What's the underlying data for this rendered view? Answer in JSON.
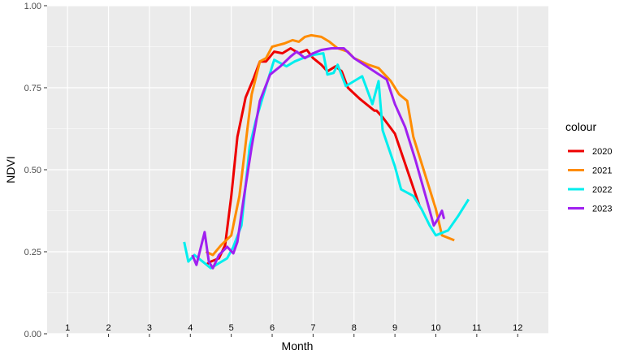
{
  "chart_data": {
    "type": "line",
    "title": "",
    "xlabel": "Month",
    "ylabel": "NDVI",
    "xlim": [
      0.5,
      12.75
    ],
    "ylim": [
      0,
      1
    ],
    "yticks": [
      0,
      0.25,
      0.5,
      0.75,
      1
    ],
    "ytick_labels": [
      "0.00",
      "0.25",
      "0.50",
      "0.75",
      "1.00"
    ],
    "xtick_positions": [
      0,
      1,
      2,
      3,
      4,
      5,
      6,
      7,
      8,
      9,
      10,
      11,
      12
    ],
    "month_labels": [
      {
        "text": "1",
        "x": 1
      },
      {
        "text": "2",
        "x": 2
      },
      {
        "text": "3",
        "x": 3
      },
      {
        "text": "4",
        "x": 4
      },
      {
        "text": "5",
        "x": 5
      },
      {
        "text": "6",
        "x": 6
      },
      {
        "text": "7",
        "x": 7
      },
      {
        "text": "8",
        "x": 8
      },
      {
        "text": "9",
        "x": 9
      },
      {
        "text": "10",
        "x": 10
      },
      {
        "text": "11",
        "x": 11
      },
      {
        "text": "12",
        "x": 12
      }
    ],
    "grid": true,
    "legend": {
      "title": "colour",
      "placement": "right"
    },
    "series": [
      {
        "name": "2020",
        "color": "#EE0000",
        "points": [
          [
            4.38,
            0.21
          ],
          [
            4.5,
            0.22
          ],
          [
            4.7,
            0.23
          ],
          [
            4.85,
            0.27
          ],
          [
            5.0,
            0.42
          ],
          [
            5.15,
            0.6
          ],
          [
            5.35,
            0.72
          ],
          [
            5.55,
            0.78
          ],
          [
            5.7,
            0.83
          ],
          [
            5.85,
            0.83
          ],
          [
            6.05,
            0.86
          ],
          [
            6.25,
            0.855
          ],
          [
            6.45,
            0.87
          ],
          [
            6.65,
            0.855
          ],
          [
            6.85,
            0.865
          ],
          [
            7.0,
            0.84
          ],
          [
            7.2,
            0.82
          ],
          [
            7.35,
            0.8
          ],
          [
            7.55,
            0.815
          ],
          [
            7.7,
            0.8
          ],
          [
            7.85,
            0.75
          ],
          [
            8.15,
            0.715
          ],
          [
            8.5,
            0.68
          ],
          [
            8.55,
            0.68
          ],
          [
            8.7,
            0.66
          ],
          [
            9.0,
            0.61
          ],
          [
            9.3,
            0.5
          ],
          [
            9.6,
            0.39
          ]
        ]
      },
      {
        "name": "2021",
        "color": "#FF8C00",
        "points": [
          [
            4.38,
            0.25
          ],
          [
            4.55,
            0.24
          ],
          [
            4.75,
            0.27
          ],
          [
            5.0,
            0.3
          ],
          [
            5.2,
            0.42
          ],
          [
            5.4,
            0.63
          ],
          [
            5.5,
            0.73
          ],
          [
            5.7,
            0.83
          ],
          [
            5.85,
            0.84
          ],
          [
            6.0,
            0.875
          ],
          [
            6.3,
            0.885
          ],
          [
            6.5,
            0.895
          ],
          [
            6.65,
            0.89
          ],
          [
            6.8,
            0.905
          ],
          [
            6.95,
            0.91
          ],
          [
            7.2,
            0.905
          ],
          [
            7.4,
            0.89
          ],
          [
            7.6,
            0.87
          ],
          [
            7.85,
            0.86
          ],
          [
            8.0,
            0.84
          ],
          [
            8.35,
            0.82
          ],
          [
            8.6,
            0.81
          ],
          [
            8.75,
            0.79
          ],
          [
            8.9,
            0.77
          ],
          [
            9.1,
            0.73
          ],
          [
            9.3,
            0.71
          ],
          [
            9.45,
            0.6
          ],
          [
            9.7,
            0.5
          ],
          [
            10.0,
            0.38
          ],
          [
            10.15,
            0.3
          ],
          [
            10.45,
            0.285
          ]
        ]
      },
      {
        "name": "2022",
        "color": "#00EEEE",
        "points": [
          [
            3.85,
            0.28
          ],
          [
            3.95,
            0.22
          ],
          [
            4.1,
            0.24
          ],
          [
            4.3,
            0.22
          ],
          [
            4.5,
            0.2
          ],
          [
            4.7,
            0.215
          ],
          [
            4.9,
            0.23
          ],
          [
            5.05,
            0.265
          ],
          [
            5.25,
            0.33
          ],
          [
            5.45,
            0.57
          ],
          [
            5.6,
            0.65
          ],
          [
            5.85,
            0.755
          ],
          [
            6.05,
            0.835
          ],
          [
            6.35,
            0.815
          ],
          [
            6.55,
            0.83
          ],
          [
            6.75,
            0.84
          ],
          [
            7.0,
            0.85
          ],
          [
            7.25,
            0.855
          ],
          [
            7.35,
            0.79
          ],
          [
            7.5,
            0.795
          ],
          [
            7.6,
            0.82
          ],
          [
            7.8,
            0.755
          ],
          [
            8.2,
            0.785
          ],
          [
            8.45,
            0.7
          ],
          [
            8.6,
            0.77
          ],
          [
            8.7,
            0.62
          ],
          [
            9.0,
            0.51
          ],
          [
            9.15,
            0.44
          ],
          [
            9.45,
            0.42
          ],
          [
            9.65,
            0.38
          ],
          [
            9.85,
            0.33
          ],
          [
            10.0,
            0.3
          ],
          [
            10.3,
            0.315
          ],
          [
            10.55,
            0.36
          ],
          [
            10.8,
            0.41
          ]
        ]
      },
      {
        "name": "2023",
        "color": "#A020F0",
        "points": [
          [
            4.05,
            0.24
          ],
          [
            4.15,
            0.21
          ],
          [
            4.35,
            0.31
          ],
          [
            4.45,
            0.22
          ],
          [
            4.55,
            0.2
          ],
          [
            4.7,
            0.24
          ],
          [
            4.9,
            0.265
          ],
          [
            5.05,
            0.245
          ],
          [
            5.15,
            0.28
          ],
          [
            5.3,
            0.41
          ],
          [
            5.5,
            0.57
          ],
          [
            5.7,
            0.71
          ],
          [
            5.95,
            0.79
          ],
          [
            6.2,
            0.815
          ],
          [
            6.45,
            0.845
          ],
          [
            6.6,
            0.86
          ],
          [
            6.8,
            0.84
          ],
          [
            7.0,
            0.855
          ],
          [
            7.2,
            0.865
          ],
          [
            7.45,
            0.87
          ],
          [
            7.75,
            0.87
          ],
          [
            8.0,
            0.84
          ],
          [
            8.25,
            0.82
          ],
          [
            8.55,
            0.795
          ],
          [
            8.8,
            0.775
          ],
          [
            9.0,
            0.7
          ],
          [
            9.25,
            0.63
          ],
          [
            9.5,
            0.53
          ],
          [
            9.75,
            0.42
          ],
          [
            9.95,
            0.33
          ],
          [
            10.05,
            0.35
          ],
          [
            10.15,
            0.375
          ],
          [
            10.2,
            0.35
          ]
        ]
      }
    ]
  }
}
